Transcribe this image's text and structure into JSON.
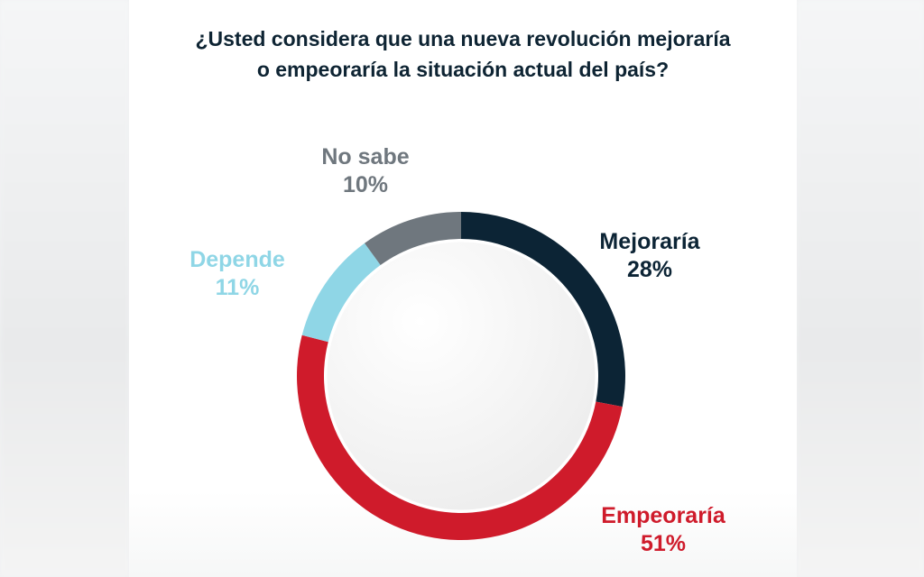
{
  "chart_data": {
    "type": "pie",
    "donut": true,
    "title": "¿Usted considera que una nueva revolución mejoraría o empeoraría la situación actual del país?",
    "title_lines": [
      "¿Usted considera que una nueva revolución mejoraría",
      "o empeoraría la situación actual del país?"
    ],
    "start": "top",
    "direction": "clockwise",
    "slices": [
      {
        "label": "Mejoraría",
        "value": 28,
        "value_label": "28%",
        "color": "#0c2435"
      },
      {
        "label": "Empeoraría",
        "value": 51,
        "value_label": "51%",
        "color": "#cf1b2b"
      },
      {
        "label": "Depende",
        "value": 11,
        "value_label": "11%",
        "color": "#8fd6e6"
      },
      {
        "label": "No sabe",
        "value": 10,
        "value_label": "10%",
        "color": "#6f777e"
      }
    ]
  }
}
